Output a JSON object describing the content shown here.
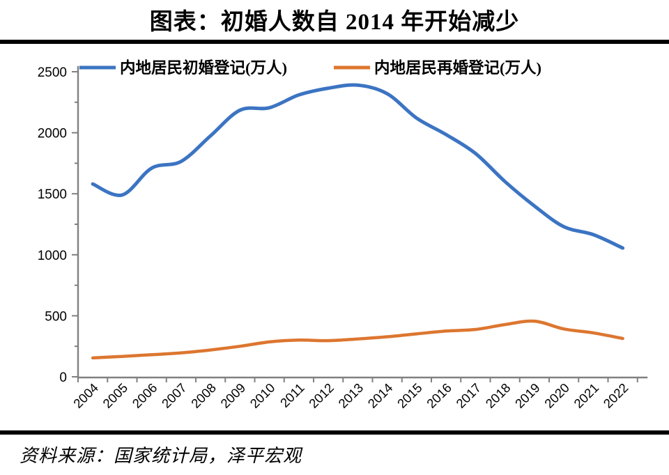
{
  "page": {
    "title": "图表：初婚人数自 2014 年开始减少",
    "source": "资料来源：国家统计局，泽平宏观"
  },
  "chart_data": {
    "type": "line",
    "title": "图表：初婚人数自 2014 年开始减少",
    "categories": [
      "2004",
      "2005",
      "2006",
      "2007",
      "2008",
      "2009",
      "2010",
      "2011",
      "2012",
      "2013",
      "2014",
      "2015",
      "2016",
      "2017",
      "2018",
      "2019",
      "2020",
      "2021",
      "2022"
    ],
    "series": [
      {
        "name": "内地居民初婚登记(万人)",
        "color": "#3C74C3",
        "values": [
          1580,
          1490,
          1710,
          1765,
          1975,
          2185,
          2205,
          2310,
          2365,
          2390,
          2320,
          2120,
          1985,
          1830,
          1600,
          1400,
          1230,
          1165,
          1055
        ]
      },
      {
        "name": "内地居民再婚登记(万人)",
        "color": "#DD7630",
        "values": [
          155,
          167,
          181,
          196,
          220,
          250,
          286,
          301,
          296,
          310,
          328,
          352,
          375,
          388,
          428,
          456,
          392,
          360,
          314
        ]
      }
    ],
    "ylabel": "",
    "xlabel": "",
    "ylim": [
      0,
      2500
    ],
    "ytick_step": 500,
    "yminor_step": 250,
    "grid": false,
    "smooth": true,
    "legend_position": "top",
    "axis_color": "#808080",
    "text_color": "#000000"
  }
}
